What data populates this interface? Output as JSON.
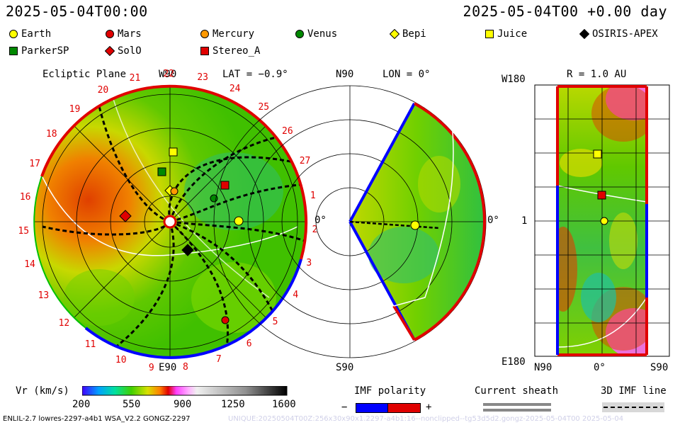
{
  "header": {
    "left_timestamp": "2025-05-04T00:00",
    "right_timestamp": "2025-05-04T00 +0.00 day"
  },
  "legend": [
    {
      "label": "Earth",
      "shape": "circle",
      "color": "#ffff00"
    },
    {
      "label": "Mars",
      "shape": "circle",
      "color": "#e00000"
    },
    {
      "label": "Mercury",
      "shape": "circle",
      "color": "#ff9900"
    },
    {
      "label": "Venus",
      "shape": "circle",
      "color": "#008800"
    },
    {
      "label": "Bepi",
      "shape": "diamond",
      "color": "#ffff00"
    },
    {
      "label": "Juice",
      "shape": "square",
      "color": "#ffff00"
    },
    {
      "label": "OSIRIS-APEX",
      "shape": "diamond",
      "color": "#000000"
    },
    {
      "label": "ParkerSP",
      "shape": "square",
      "color": "#008800"
    },
    {
      "label": "SolO",
      "shape": "diamond",
      "color": "#e00000"
    },
    {
      "label": "Stereo_A",
      "shape": "square",
      "color": "#e00000"
    }
  ],
  "ecliptic": {
    "title": "Ecliptic Plane",
    "top_label": "W90",
    "lat_label": "LAT = −0.9°",
    "bottom_label": "E90",
    "right_label": "0°",
    "ticks": [
      "1",
      "2",
      "3",
      "4",
      "5",
      "6",
      "7",
      "8",
      "9",
      "10",
      "11",
      "12",
      "13",
      "14",
      "15",
      "16",
      "17",
      "18",
      "19",
      "20",
      "21",
      "22",
      "23",
      "24",
      "25",
      "26",
      "27"
    ]
  },
  "meridional": {
    "top_left": "N90",
    "lon_label": "LON = 0°",
    "right_label": "0°",
    "bottom_left": "S90"
  },
  "synoptic": {
    "top_left": "W180",
    "r_label": "R = 1.0 AU",
    "mid_left": "1",
    "bottom_left": "E180",
    "x_labels": [
      "N90",
      "0°",
      "S90"
    ]
  },
  "colorbar": {
    "label": "Vr (km/s)",
    "ticks": [
      "200",
      "550",
      "900",
      "1250",
      "1600"
    ]
  },
  "imf_polarity": {
    "title": "IMF polarity",
    "minus": "−",
    "plus": "+"
  },
  "current_sheath": {
    "title": "Current sheath"
  },
  "imf_3d": {
    "title": "3D IMF line"
  },
  "footer": {
    "left": "ENLIL-2.7 lowres-2297-a4b1 WSA_V2.2 GONGZ-2297",
    "faint": "UNIQUE:20250504T00Z:256x30x90x1.2297-a4b1:16--nonclipped--tg53d5d2.gongz-2025-05-04T00   2025-05-04"
  },
  "colors": {
    "accent_red": "#e00000",
    "accent_blue": "#0000ff"
  }
}
